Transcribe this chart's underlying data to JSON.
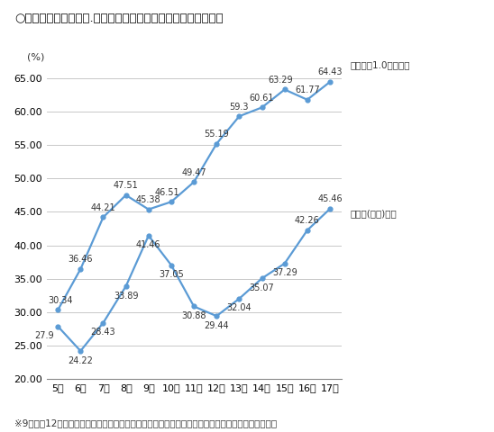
{
  "title": "○年齢別　裸眼視力１.０未満の者、むし歯（う歯）の者の割合",
  "footnote": "※9歳から12歳において割合が減少するのは，乳歯が生え替わることが影響していると考えられる。",
  "ylabel_unit": "(%)",
  "ages": [
    "5歳",
    "6歳",
    "7歳",
    "8歳",
    "9歳",
    "10歳",
    "11歳",
    "12歳",
    "13歳",
    "14歳",
    "15歳",
    "16歳",
    "17歳"
  ],
  "vision_label": "裸眼視力1.0未満の者",
  "cavity_label": "むし歯(う歯)の者",
  "vision_values": [
    30.34,
    36.46,
    44.21,
    47.51,
    45.38,
    46.51,
    49.47,
    55.19,
    59.3,
    60.61,
    63.29,
    61.77,
    64.43
  ],
  "cavity_values": [
    27.9,
    24.22,
    28.43,
    33.89,
    41.46,
    37.05,
    30.88,
    29.44,
    32.04,
    35.07,
    37.29,
    42.26,
    45.46
  ],
  "line_color": "#5B9BD5",
  "ylim_min": 20.0,
  "ylim_max": 67.0,
  "yticks": [
    20.0,
    25.0,
    30.0,
    35.0,
    40.0,
    45.0,
    50.0,
    55.0,
    60.0,
    65.0
  ],
  "background_color": "#ffffff",
  "grid_color": "#c8c8c8",
  "data_fontsize": 7.0,
  "title_fontsize": 9.5,
  "footnote_fontsize": 7.5,
  "axis_tick_fontsize": 8.0,
  "legend_fontsize": 7.5
}
